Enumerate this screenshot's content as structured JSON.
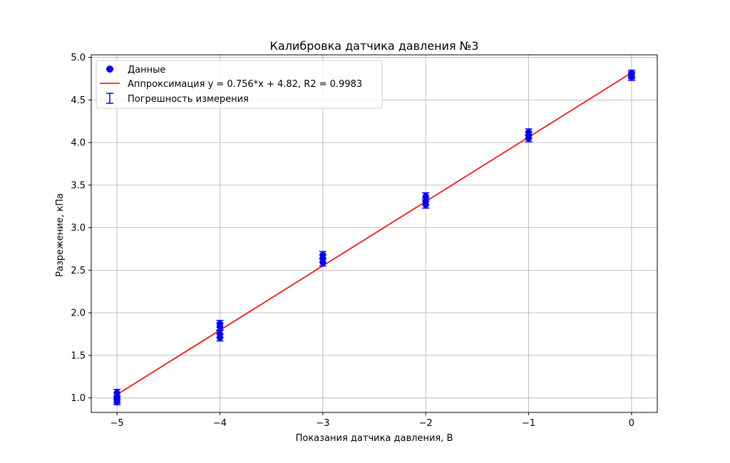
{
  "chart_data": {
    "type": "scatter",
    "title": "Калибровка датчика давления №3",
    "xlabel": "Показания датчика давления, В",
    "ylabel": "Разрежение, кПа",
    "xlim": [
      -5.25,
      0.25
    ],
    "ylim": [
      0.83,
      5.03
    ],
    "xticks": [
      -5,
      -4,
      -3,
      -2,
      -1,
      0
    ],
    "xtick_labels": [
      "−5",
      "−4",
      "−3",
      "−2",
      "−1",
      "0"
    ],
    "yticks": [
      1.0,
      1.5,
      2.0,
      2.5,
      3.0,
      3.5,
      4.0,
      4.5,
      5.0
    ],
    "ytick_labels": [
      "1.0",
      "1.5",
      "2.0",
      "2.5",
      "3.0",
      "3.5",
      "4.0",
      "4.5",
      "5.0"
    ],
    "grid": true,
    "legend_position": "top-left",
    "legend": [
      "Данные",
      "Аппроксимация y = 0.756*x + 4.82, R2 = 0.9983",
      "Погрешность измерения"
    ],
    "series": [
      {
        "kind": "points",
        "color": "#0000ff",
        "x": [
          -5,
          -5,
          -5,
          -5,
          -4,
          -4,
          -4,
          -4,
          -3,
          -3,
          -3,
          -2,
          -2,
          -2,
          -1,
          -1,
          -1,
          0,
          0,
          0
        ],
        "y": [
          1.06,
          1.02,
          0.98,
          0.96,
          1.87,
          1.84,
          1.75,
          1.71,
          2.68,
          2.64,
          2.59,
          3.37,
          3.31,
          3.27,
          4.12,
          4.09,
          4.05,
          4.81,
          4.79,
          4.77
        ],
        "error": 0.04
      },
      {
        "kind": "fit_line",
        "color": "#ff0000",
        "slope": 0.756,
        "intercept": 4.82,
        "x": [
          -5,
          0
        ]
      }
    ]
  }
}
